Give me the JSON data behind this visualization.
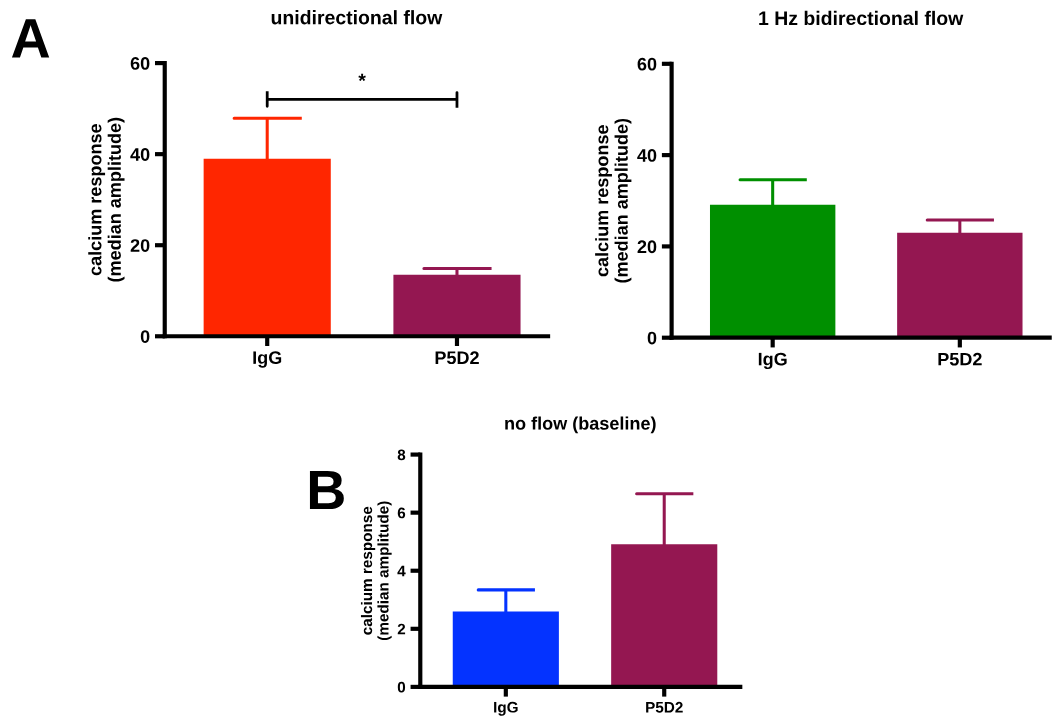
{
  "chart_data": [
    {
      "type": "bar",
      "title": "unidirectional flow",
      "ylabel": "calcium response\n(median amplitude)",
      "categories": [
        "IgG",
        "P5D2"
      ],
      "values": [
        39.0,
        13.5
      ],
      "colors": [
        "#ff2600",
        "#941751"
      ],
      "errors": [
        [
          39.0,
          47.9
        ],
        [
          13.5,
          14.9
        ]
      ],
      "ylim": [
        0,
        60
      ],
      "yticks": [
        0,
        20,
        40,
        60
      ],
      "grid": false,
      "annotations": [
        "A",
        "*"
      ]
    },
    {
      "type": "bar",
      "title": "1 Hz bidirectional flow",
      "ylabel": "calcium response\n(median amplitude)",
      "categories": [
        "IgG",
        "P5D2"
      ],
      "values": [
        29.1,
        23.0
      ],
      "colors": [
        "#008f00",
        "#941751"
      ],
      "errors": [
        [
          29.1,
          34.6
        ],
        [
          23.0,
          25.8
        ]
      ],
      "ylim": [
        0,
        60
      ],
      "yticks": [
        0,
        20,
        40,
        60
      ],
      "grid": false
    },
    {
      "type": "bar",
      "title": "no flow (baseline)",
      "ylabel": "calcium response\n(median amplitude)",
      "categories": [
        "IgG",
        "P5D2"
      ],
      "values": [
        2.6,
        4.91
      ],
      "colors": [
        "#0433ff",
        "#941751"
      ],
      "errors": [
        [
          2.6,
          3.34
        ],
        [
          4.91,
          6.65
        ]
      ],
      "ylim": [
        0,
        8
      ],
      "yticks": [
        0,
        2,
        4,
        6,
        8
      ],
      "grid": false,
      "annotations": [
        "B"
      ]
    }
  ]
}
